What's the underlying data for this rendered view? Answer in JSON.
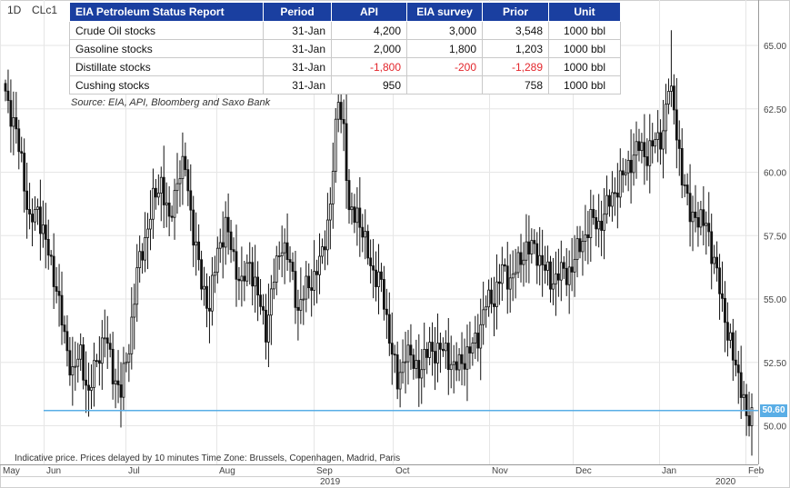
{
  "header": {
    "interval": "1D",
    "symbol": "CLc1"
  },
  "table": {
    "headers": [
      "EIA Petroleum Status Report",
      "Period",
      "API",
      "EIA survey",
      "Prior",
      "Unit"
    ],
    "rows": [
      {
        "item": "Crude Oil stocks",
        "period": "31-Jan",
        "api": "4,200",
        "survey": "3,000",
        "prior": "3,548",
        "unit": "1000 bbl"
      },
      {
        "item": "Gasoline stocks",
        "period": "31-Jan",
        "api": "2,000",
        "survey": "1,800",
        "prior": "1,203",
        "unit": "1000 bbl"
      },
      {
        "item": "Distillate stocks",
        "period": "31-Jan",
        "api": "-1,800",
        "survey": "-200",
        "prior": "-1,289",
        "unit": "1000 bbl"
      },
      {
        "item": "Cushing stocks",
        "period": "31-Jan",
        "api": "950",
        "survey": "",
        "prior": "758",
        "unit": "1000 bbl"
      }
    ],
    "source": "Source: EIA, API, Bloomberg and Saxo Bank",
    "header_color": "#1a3fa0",
    "negative_color": "#e3262c"
  },
  "footer_note": "Indicative price. Prices delayed by 10 minutes    Time Zone: Brussels, Copenhagen, Madrid, Paris",
  "price_tag": {
    "label": "50.60",
    "color": "#5aaee6"
  },
  "chart_data": {
    "type": "candlestick",
    "ylim": [
      49.2,
      66.0
    ],
    "y_ticks": [
      50.0,
      52.5,
      55.0,
      57.5,
      60.0,
      62.5,
      65.0
    ],
    "y_tick_labels": [
      "50.00",
      "52.50",
      "55.00",
      "57.50",
      "60.00",
      "62.50",
      "65.00"
    ],
    "x_labels": [
      "May",
      "Jun",
      "Jul",
      "Aug",
      "Sep",
      "Oct",
      "Nov",
      "Dec",
      "Jan",
      "Feb"
    ],
    "year_labels": [
      "2019",
      "2020"
    ],
    "grid": true,
    "horizontal_line": {
      "value": 50.6,
      "color": "#5aaee6"
    },
    "close_anchors": [
      {
        "i": 0,
        "c": 63.2
      },
      {
        "i": 3,
        "c": 61.9
      },
      {
        "i": 6,
        "c": 60.5
      },
      {
        "i": 9,
        "c": 57.9
      },
      {
        "i": 12,
        "c": 58.6
      },
      {
        "i": 15,
        "c": 57.2
      },
      {
        "i": 19,
        "c": 55.5
      },
      {
        "i": 22,
        "c": 53.4
      },
      {
        "i": 25,
        "c": 52.1
      },
      {
        "i": 28,
        "c": 52.8
      },
      {
        "i": 31,
        "c": 51.2
      },
      {
        "i": 34,
        "c": 52.6
      },
      {
        "i": 37,
        "c": 53.6
      },
      {
        "i": 40,
        "c": 52.1
      },
      {
        "i": 43,
        "c": 51.3
      },
      {
        "i": 46,
        "c": 53.2
      },
      {
        "i": 49,
        "c": 56.0
      },
      {
        "i": 52,
        "c": 57.4
      },
      {
        "i": 55,
        "c": 58.8
      },
      {
        "i": 58,
        "c": 59.7
      },
      {
        "i": 61,
        "c": 57.9
      },
      {
        "i": 64,
        "c": 59.8
      },
      {
        "i": 67,
        "c": 60.2
      },
      {
        "i": 70,
        "c": 57.6
      },
      {
        "i": 73,
        "c": 55.6
      },
      {
        "i": 76,
        "c": 54.7
      },
      {
        "i": 79,
        "c": 56.9
      },
      {
        "i": 82,
        "c": 57.9
      },
      {
        "i": 85,
        "c": 56.6
      },
      {
        "i": 88,
        "c": 55.5
      },
      {
        "i": 91,
        "c": 56.5
      },
      {
        "i": 94,
        "c": 55.1
      },
      {
        "i": 97,
        "c": 53.8
      },
      {
        "i": 100,
        "c": 55.8
      },
      {
        "i": 103,
        "c": 57.3
      },
      {
        "i": 106,
        "c": 56.3
      },
      {
        "i": 109,
        "c": 54.6
      },
      {
        "i": 112,
        "c": 55.4
      },
      {
        "i": 115,
        "c": 55.9
      },
      {
        "i": 118,
        "c": 56.7
      },
      {
        "i": 121,
        "c": 58.8
      },
      {
        "i": 124,
        "c": 62.9
      },
      {
        "i": 126,
        "c": 61.8
      },
      {
        "i": 128,
        "c": 58.2
      },
      {
        "i": 131,
        "c": 58.5
      },
      {
        "i": 134,
        "c": 57.1
      },
      {
        "i": 137,
        "c": 56.1
      },
      {
        "i": 140,
        "c": 55.5
      },
      {
        "i": 143,
        "c": 53.6
      },
      {
        "i": 146,
        "c": 51.6
      },
      {
        "i": 149,
        "c": 53.0
      },
      {
        "i": 152,
        "c": 52.4
      },
      {
        "i": 155,
        "c": 52.3
      },
      {
        "i": 158,
        "c": 53.1
      },
      {
        "i": 161,
        "c": 52.9
      },
      {
        "i": 164,
        "c": 53.0
      },
      {
        "i": 167,
        "c": 52.2
      },
      {
        "i": 170,
        "c": 52.6
      },
      {
        "i": 173,
        "c": 52.9
      },
      {
        "i": 176,
        "c": 53.6
      },
      {
        "i": 179,
        "c": 54.8
      },
      {
        "i": 182,
        "c": 55.1
      },
      {
        "i": 185,
        "c": 56.1
      },
      {
        "i": 188,
        "c": 55.8
      },
      {
        "i": 191,
        "c": 56.3
      },
      {
        "i": 194,
        "c": 57.1
      },
      {
        "i": 197,
        "c": 56.9
      },
      {
        "i": 200,
        "c": 56.5
      },
      {
        "i": 203,
        "c": 55.6
      },
      {
        "i": 206,
        "c": 56.1
      },
      {
        "i": 209,
        "c": 55.9
      },
      {
        "i": 212,
        "c": 56.6
      },
      {
        "i": 215,
        "c": 57.3
      },
      {
        "i": 218,
        "c": 58.1
      },
      {
        "i": 221,
        "c": 57.9
      },
      {
        "i": 224,
        "c": 58.6
      },
      {
        "i": 227,
        "c": 59.3
      },
      {
        "i": 230,
        "c": 59.8
      },
      {
        "i": 233,
        "c": 60.5
      },
      {
        "i": 236,
        "c": 61.0
      },
      {
        "i": 239,
        "c": 60.7
      },
      {
        "i": 242,
        "c": 61.2
      },
      {
        "i": 245,
        "c": 61.6
      },
      {
        "i": 247,
        "c": 63.3
      },
      {
        "i": 249,
        "c": 62.7
      },
      {
        "i": 252,
        "c": 59.6
      },
      {
        "i": 255,
        "c": 58.6
      },
      {
        "i": 258,
        "c": 57.9
      },
      {
        "i": 261,
        "c": 58.3
      },
      {
        "i": 263,
        "c": 56.6
      },
      {
        "i": 266,
        "c": 55.7
      },
      {
        "i": 269,
        "c": 53.4
      },
      {
        "i": 272,
        "c": 52.6
      },
      {
        "i": 274,
        "c": 51.4
      },
      {
        "i": 276,
        "c": 50.2
      },
      {
        "i": 278,
        "c": 50.6
      }
    ],
    "n_bars": 279
  }
}
